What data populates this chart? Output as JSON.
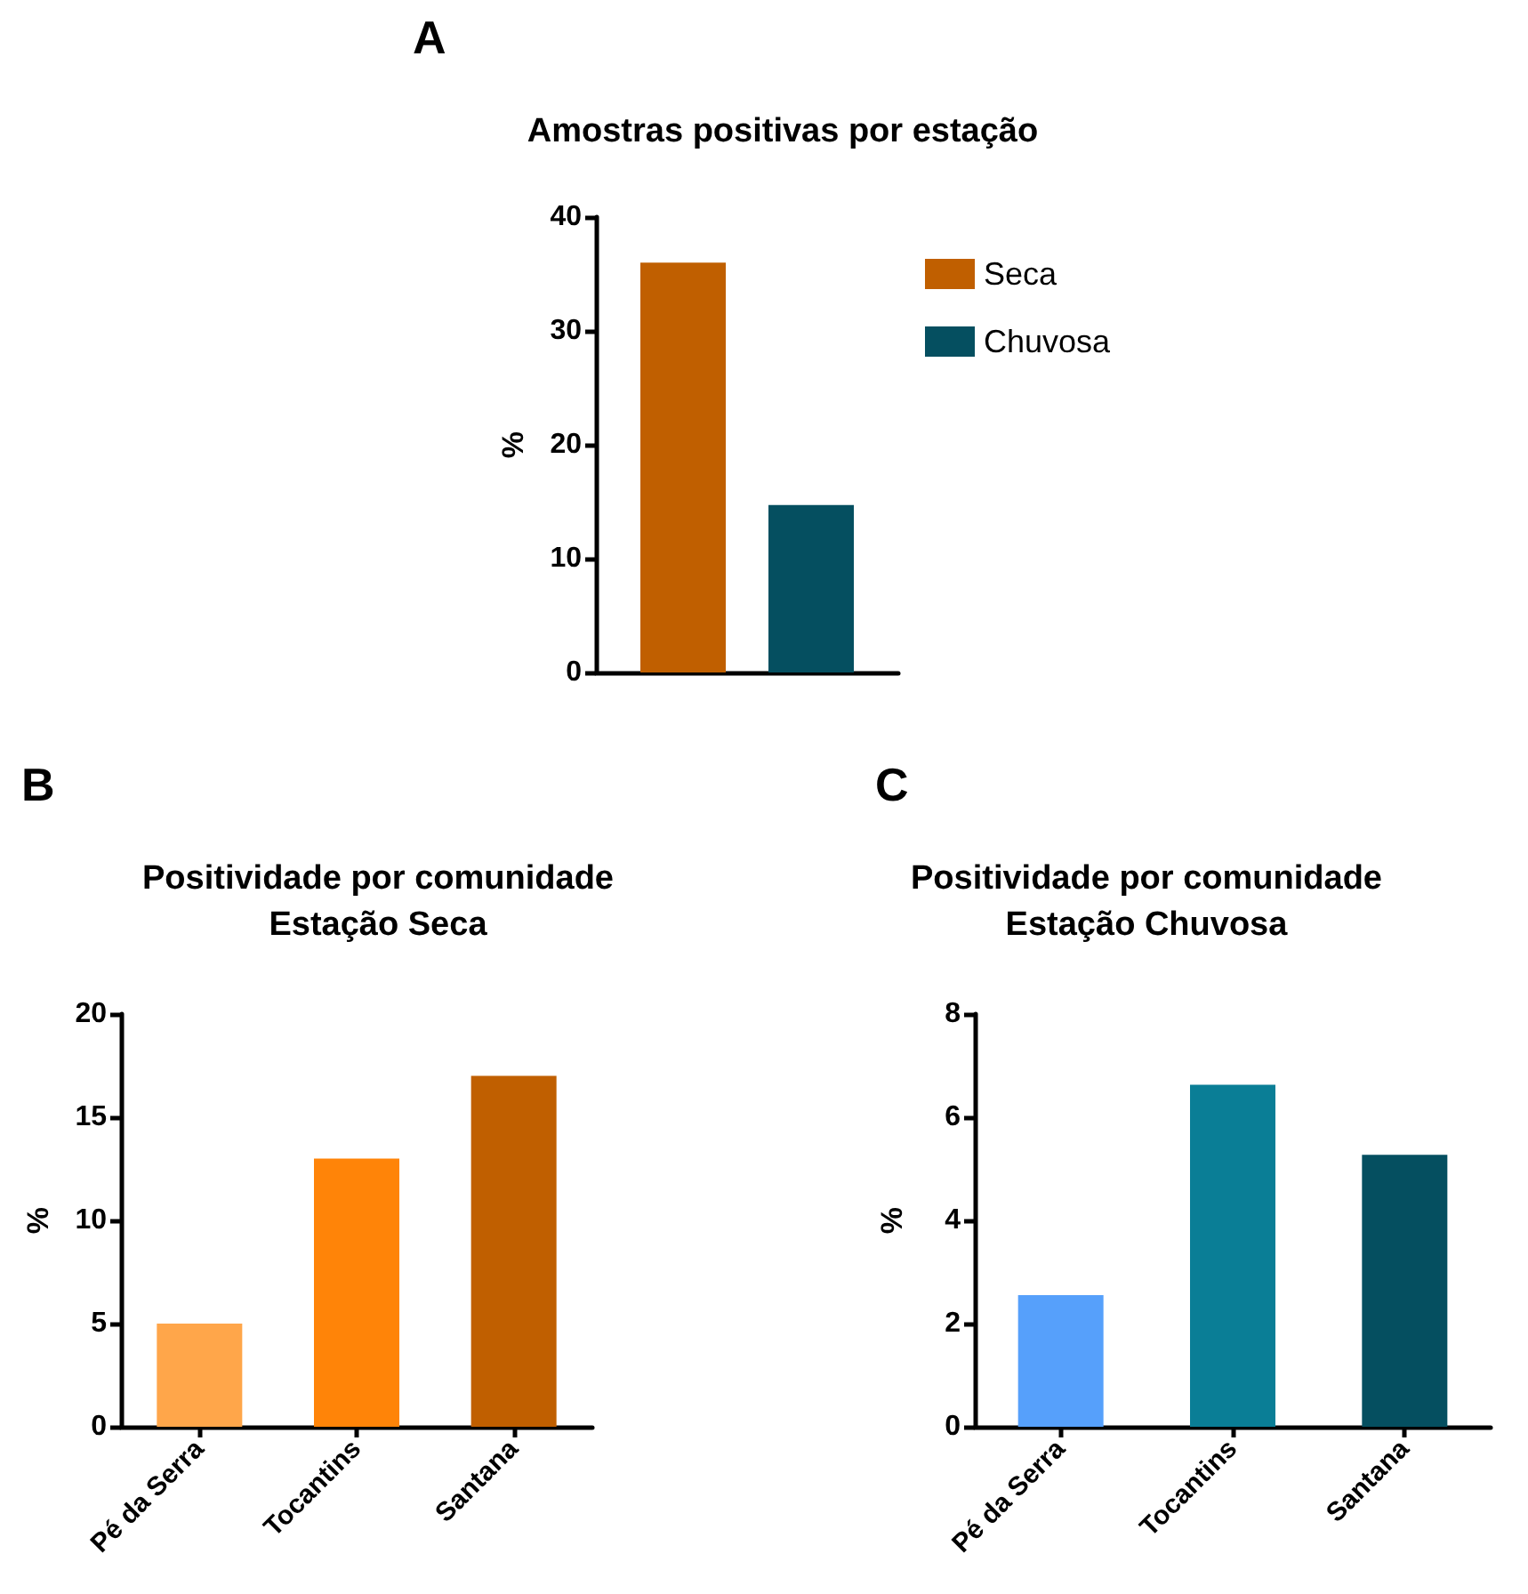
{
  "chart_data": [
    {
      "type": "bar",
      "title": "Amostras positivas por estação",
      "annotations": [
        "A"
      ],
      "ylabel": "%",
      "categories": [
        null
      ],
      "series": [
        {
          "name": "Seca",
          "color": "#c05f00",
          "values": [
            36
          ]
        },
        {
          "name": "Chuvosa",
          "color": "#054f60",
          "values": [
            14.7
          ]
        }
      ],
      "ylim": [
        0,
        40
      ],
      "yticks": [
        0,
        10,
        20,
        30,
        40
      ],
      "grid": false,
      "legend": "right"
    },
    {
      "type": "bar",
      "title": "Positividade por comunidade\nEstação Seca",
      "annotations": [
        "B"
      ],
      "ylabel": "%",
      "categories": [
        "Pé da Serra",
        "Tocantins",
        "Santana"
      ],
      "values": [
        5,
        13,
        17
      ],
      "colors": [
        "#ffa64a",
        "#ff8408",
        "#c05f00"
      ],
      "ylim": [
        0,
        20
      ],
      "yticks": [
        0,
        5,
        10,
        15,
        20
      ],
      "grid": false
    },
    {
      "type": "bar",
      "title": "Positividade por comunidade\nEstação Chuvosa",
      "annotations": [
        "C"
      ],
      "ylabel": "%",
      "categories": [
        "Pé da Serra",
        "Tocantins",
        "Santana"
      ],
      "values": [
        2.55,
        6.63,
        5.27
      ],
      "colors": [
        "#56a0fb",
        "#0a7e96",
        "#054f60"
      ],
      "ylim": [
        0,
        8
      ],
      "yticks": [
        0,
        2,
        4,
        6,
        8
      ],
      "grid": false
    }
  ]
}
